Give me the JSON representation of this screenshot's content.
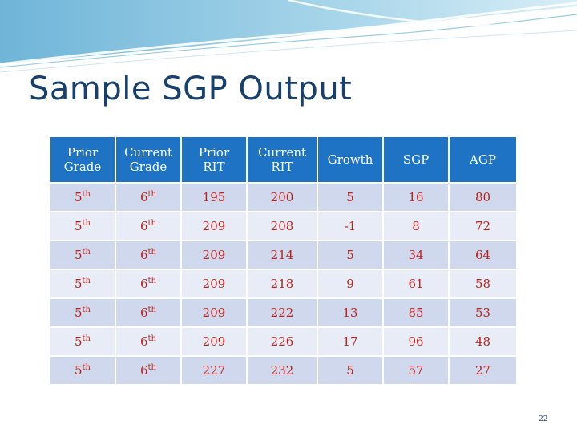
{
  "slide": {
    "title": "Sample SGP Output",
    "page_number": "22"
  },
  "table": {
    "headers": [
      [
        "Prior",
        "Grade"
      ],
      [
        "Current",
        "Grade"
      ],
      [
        "Prior",
        "RIT"
      ],
      [
        "Current",
        "RIT"
      ],
      [
        "Growth"
      ],
      [
        "SGP"
      ],
      [
        "AGP"
      ]
    ],
    "rows": [
      {
        "prior_grade": "5",
        "prior_grade_sup": "th",
        "current_grade": "6",
        "current_grade_sup": "th",
        "prior_rit": "195",
        "current_rit": "200",
        "growth": "5",
        "sgp": "16",
        "agp": "80"
      },
      {
        "prior_grade": "5",
        "prior_grade_sup": "th",
        "current_grade": "6",
        "current_grade_sup": "th",
        "prior_rit": "209",
        "current_rit": "208",
        "growth": "-1",
        "sgp": "8",
        "agp": "72"
      },
      {
        "prior_grade": "5",
        "prior_grade_sup": "th",
        "current_grade": "6",
        "current_grade_sup": "th",
        "prior_rit": "209",
        "current_rit": "214",
        "growth": "5",
        "sgp": "34",
        "agp": "64"
      },
      {
        "prior_grade": "5",
        "prior_grade_sup": "th",
        "current_grade": "6",
        "current_grade_sup": "th",
        "prior_rit": "209",
        "current_rit": "218",
        "growth": "9",
        "sgp": "61",
        "agp": "58"
      },
      {
        "prior_grade": "5",
        "prior_grade_sup": "th",
        "current_grade": "6",
        "current_grade_sup": "th",
        "prior_rit": "209",
        "current_rit": "222",
        "growth": "13",
        "sgp": "85",
        "agp": "53"
      },
      {
        "prior_grade": "5",
        "prior_grade_sup": "th",
        "current_grade": "6",
        "current_grade_sup": "th",
        "prior_rit": "209",
        "current_rit": "226",
        "growth": "17",
        "sgp": "96",
        "agp": "48"
      },
      {
        "prior_grade": "5",
        "prior_grade_sup": "th",
        "current_grade": "6",
        "current_grade_sup": "th",
        "prior_rit": "227",
        "current_rit": "232",
        "growth": "5",
        "sgp": "57",
        "agp": "27"
      }
    ]
  },
  "colors": {
    "header_bg": "#1f73c4",
    "row_odd_bg": "#cfd8ec",
    "row_even_bg": "#e8ecf6",
    "red_text": "#c0221b",
    "title_color": "#17406d"
  }
}
